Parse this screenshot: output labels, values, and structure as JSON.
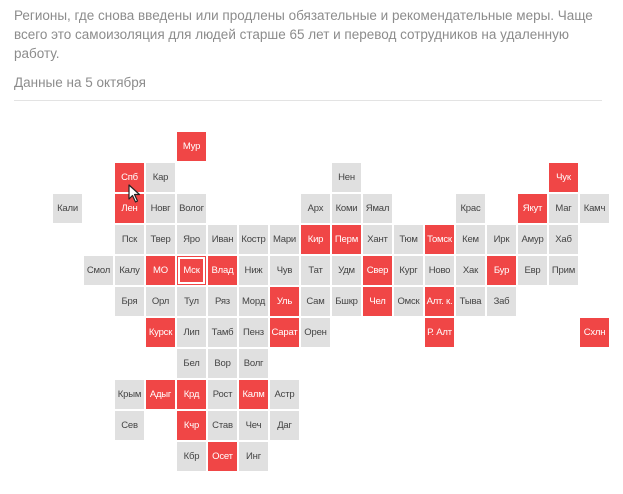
{
  "description": "Регионы, где снова введены или продлены обязательные и рекомендательные меры. Чаще всего это самоизоляция для людей старше 65 лет и перевод сотрудников на удаленную работу.",
  "date_label": "Данные на 5 октября",
  "colors": {
    "restricted": "#f04646",
    "other": "#e0e0e0"
  },
  "regions": [
    {
      "label": "Мур",
      "col": 5,
      "row": 0,
      "restricted": true
    },
    {
      "label": "Спб",
      "col": 3,
      "row": 1,
      "restricted": true
    },
    {
      "label": "Кар",
      "col": 4,
      "row": 1,
      "restricted": false
    },
    {
      "label": "Нен",
      "col": 10,
      "row": 1,
      "restricted": false
    },
    {
      "label": "Чук",
      "col": 17,
      "row": 1,
      "restricted": true
    },
    {
      "label": "Кали",
      "col": 1,
      "row": 2,
      "restricted": false
    },
    {
      "label": "Лен",
      "col": 3,
      "row": 2,
      "restricted": true
    },
    {
      "label": "Новг",
      "col": 4,
      "row": 2,
      "restricted": false
    },
    {
      "label": "Волог",
      "col": 5,
      "row": 2,
      "restricted": false
    },
    {
      "label": "Арх",
      "col": 9,
      "row": 2,
      "restricted": false
    },
    {
      "label": "Коми",
      "col": 10,
      "row": 2,
      "restricted": false
    },
    {
      "label": "Ямал",
      "col": 11,
      "row": 2,
      "restricted": false
    },
    {
      "label": "Крас",
      "col": 14,
      "row": 2,
      "restricted": false
    },
    {
      "label": "Якут",
      "col": 16,
      "row": 2,
      "restricted": true
    },
    {
      "label": "Маг",
      "col": 17,
      "row": 2,
      "restricted": false
    },
    {
      "label": "Камч",
      "col": 18,
      "row": 2,
      "restricted": false
    },
    {
      "label": "Пск",
      "col": 3,
      "row": 3,
      "restricted": false
    },
    {
      "label": "Твер",
      "col": 4,
      "row": 3,
      "restricted": false
    },
    {
      "label": "Яро",
      "col": 5,
      "row": 3,
      "restricted": false
    },
    {
      "label": "Иван",
      "col": 6,
      "row": 3,
      "restricted": false
    },
    {
      "label": "Костр",
      "col": 7,
      "row": 3,
      "restricted": false
    },
    {
      "label": "Мари",
      "col": 8,
      "row": 3,
      "restricted": false
    },
    {
      "label": "Кир",
      "col": 9,
      "row": 3,
      "restricted": true
    },
    {
      "label": "Перм",
      "col": 10,
      "row": 3,
      "restricted": true
    },
    {
      "label": "Хант",
      "col": 11,
      "row": 3,
      "restricted": false
    },
    {
      "label": "Тюм",
      "col": 12,
      "row": 3,
      "restricted": false
    },
    {
      "label": "Томск",
      "col": 13,
      "row": 3,
      "restricted": true
    },
    {
      "label": "Кем",
      "col": 14,
      "row": 3,
      "restricted": false
    },
    {
      "label": "Ирк",
      "col": 15,
      "row": 3,
      "restricted": false
    },
    {
      "label": "Амур",
      "col": 16,
      "row": 3,
      "restricted": false
    },
    {
      "label": "Хаб",
      "col": 17,
      "row": 3,
      "restricted": false
    },
    {
      "label": "Смол",
      "col": 2,
      "row": 4,
      "restricted": false
    },
    {
      "label": "Калу",
      "col": 3,
      "row": 4,
      "restricted": false
    },
    {
      "label": "МО",
      "col": 4,
      "row": 4,
      "restricted": true
    },
    {
      "label": "Мск",
      "col": 5,
      "row": 4,
      "restricted": true,
      "selected": true
    },
    {
      "label": "Влад",
      "col": 6,
      "row": 4,
      "restricted": true
    },
    {
      "label": "Ниж",
      "col": 7,
      "row": 4,
      "restricted": false
    },
    {
      "label": "Чув",
      "col": 8,
      "row": 4,
      "restricted": false
    },
    {
      "label": "Тат",
      "col": 9,
      "row": 4,
      "restricted": false
    },
    {
      "label": "Удм",
      "col": 10,
      "row": 4,
      "restricted": false
    },
    {
      "label": "Свер",
      "col": 11,
      "row": 4,
      "restricted": true
    },
    {
      "label": "Кург",
      "col": 12,
      "row": 4,
      "restricted": false
    },
    {
      "label": "Ново",
      "col": 13,
      "row": 4,
      "restricted": false
    },
    {
      "label": "Хак",
      "col": 14,
      "row": 4,
      "restricted": false
    },
    {
      "label": "Бур",
      "col": 15,
      "row": 4,
      "restricted": true
    },
    {
      "label": "Евр",
      "col": 16,
      "row": 4,
      "restricted": false
    },
    {
      "label": "Прим",
      "col": 17,
      "row": 4,
      "restricted": false
    },
    {
      "label": "Бря",
      "col": 3,
      "row": 5,
      "restricted": false
    },
    {
      "label": "Орл",
      "col": 4,
      "row": 5,
      "restricted": false
    },
    {
      "label": "Тул",
      "col": 5,
      "row": 5,
      "restricted": false
    },
    {
      "label": "Ряз",
      "col": 6,
      "row": 5,
      "restricted": false
    },
    {
      "label": "Морд",
      "col": 7,
      "row": 5,
      "restricted": false
    },
    {
      "label": "Уль",
      "col": 8,
      "row": 5,
      "restricted": true
    },
    {
      "label": "Сам",
      "col": 9,
      "row": 5,
      "restricted": false
    },
    {
      "label": "Бшкр",
      "col": 10,
      "row": 5,
      "restricted": false
    },
    {
      "label": "Чел",
      "col": 11,
      "row": 5,
      "restricted": true
    },
    {
      "label": "Омск",
      "col": 12,
      "row": 5,
      "restricted": false
    },
    {
      "label": "Алт. к.",
      "col": 13,
      "row": 5,
      "restricted": true
    },
    {
      "label": "Тыва",
      "col": 14,
      "row": 5,
      "restricted": false
    },
    {
      "label": "Заб",
      "col": 15,
      "row": 5,
      "restricted": false
    },
    {
      "label": "Курск",
      "col": 4,
      "row": 6,
      "restricted": true
    },
    {
      "label": "Лип",
      "col": 5,
      "row": 6,
      "restricted": false
    },
    {
      "label": "Тамб",
      "col": 6,
      "row": 6,
      "restricted": false
    },
    {
      "label": "Пенз",
      "col": 7,
      "row": 6,
      "restricted": false
    },
    {
      "label": "Сарат",
      "col": 8,
      "row": 6,
      "restricted": true
    },
    {
      "label": "Орен",
      "col": 9,
      "row": 6,
      "restricted": false
    },
    {
      "label": "Р. Алт",
      "col": 13,
      "row": 6,
      "restricted": true
    },
    {
      "label": "Схлн",
      "col": 18,
      "row": 6,
      "restricted": true
    },
    {
      "label": "Бел",
      "col": 5,
      "row": 7,
      "restricted": false
    },
    {
      "label": "Вор",
      "col": 6,
      "row": 7,
      "restricted": false
    },
    {
      "label": "Волг",
      "col": 7,
      "row": 7,
      "restricted": false
    },
    {
      "label": "Крым",
      "col": 3,
      "row": 8,
      "restricted": false
    },
    {
      "label": "Адыг",
      "col": 4,
      "row": 8,
      "restricted": true
    },
    {
      "label": "Крд",
      "col": 5,
      "row": 8,
      "restricted": true
    },
    {
      "label": "Рост",
      "col": 6,
      "row": 8,
      "restricted": false
    },
    {
      "label": "Калм",
      "col": 7,
      "row": 8,
      "restricted": true
    },
    {
      "label": "Астр",
      "col": 8,
      "row": 8,
      "restricted": false
    },
    {
      "label": "Сев",
      "col": 3,
      "row": 9,
      "restricted": false
    },
    {
      "label": "Кчр",
      "col": 5,
      "row": 9,
      "restricted": true
    },
    {
      "label": "Став",
      "col": 6,
      "row": 9,
      "restricted": false
    },
    {
      "label": "Чеч",
      "col": 7,
      "row": 9,
      "restricted": false
    },
    {
      "label": "Даг",
      "col": 8,
      "row": 9,
      "restricted": false
    },
    {
      "label": "Кбр",
      "col": 5,
      "row": 10,
      "restricted": false
    },
    {
      "label": "Осет",
      "col": 6,
      "row": 10,
      "restricted": true
    },
    {
      "label": "Инг",
      "col": 7,
      "row": 10,
      "restricted": false
    }
  ]
}
